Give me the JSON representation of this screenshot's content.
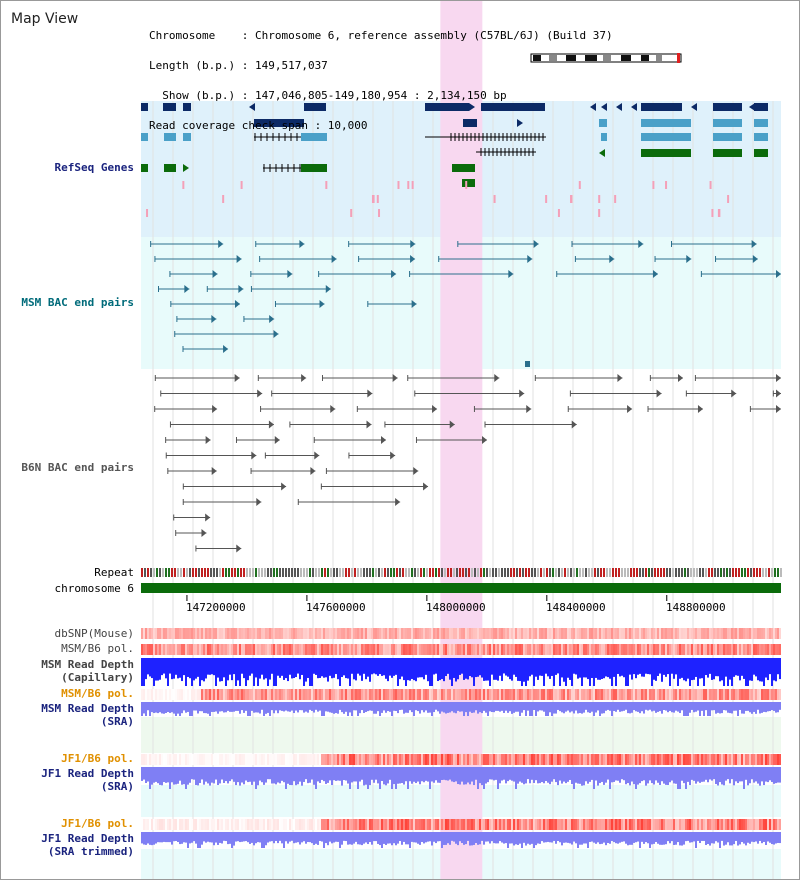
{
  "header": {
    "title": "Map View",
    "lines": [
      "Chromosome    : Chromosome 6, reference assembly (C57BL/6J) (Build 37)",
      "Length (b.p.) : 149,517,037",
      "  Show (b.p.) : 147,046,805-149,180,954 : 2,134,150 bp",
      "Read coverage check span : 10,000"
    ]
  },
  "tracks": {
    "refseq": "RefSeq Genes",
    "msm_bac": "MSM BAC end pairs",
    "b6n_bac": "B6N BAC end pairs",
    "repeat": "Repeat",
    "chromosome": "chromosome 6",
    "dbsnp": "dbSNP(Mouse)",
    "msm_b6_pol": "MSM/B6 pol.",
    "msm_read_depth_cap": "MSM Read Depth",
    "msm_read_depth_cap2": "(Capillary)",
    "msm_b6_pol_sra": "MSM/B6 pol.",
    "msm_read_depth_sra": "MSM Read Depth",
    "msm_read_depth_sra2": "(SRA)",
    "jf1_b6_pol": "JF1/B6 pol.",
    "jf1_read_depth": "JF1 Read Depth",
    "jf1_read_depth2": "(SRA)",
    "jf1_b6_pol_trim": "JF1/B6 pol.",
    "jf1_read_depth_trim": "JF1 Read Depth",
    "jf1_read_depth_trim2": "(SRA trimmed)"
  },
  "axis": {
    "ticks": [
      "147200000",
      "147600000",
      "148000000",
      "148400000",
      "148800000"
    ],
    "tick_values": [
      147200000,
      147600000,
      148000000,
      148400000,
      148800000
    ],
    "range": [
      147046805,
      149180954
    ],
    "highlight": [
      148045000,
      148185000
    ]
  },
  "colors": {
    "refseq_bg": "#dff1fb",
    "msm_bg": "#e8fbfb",
    "highlight": "#f8d8f0",
    "gene_dark": "#0c2a66",
    "gene_mid": "#4aa0c8",
    "gene_green": "#0b6b0b",
    "msm_line": "#2b6f8c",
    "b6n_line": "#555555",
    "chrom_bar": "#0b6b0b",
    "depth_blue": "#1e22ff",
    "depth_violet": "#7f7ff4",
    "pol_red": "#e03030"
  }
}
